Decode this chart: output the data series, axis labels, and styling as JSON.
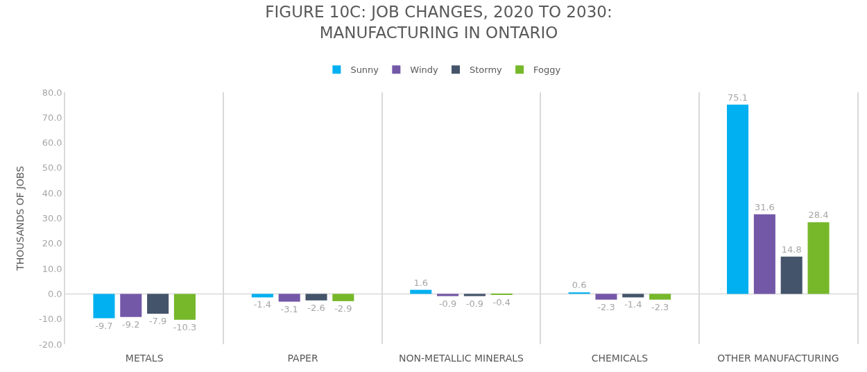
{
  "chart_data": {
    "type": "bar",
    "title": "FIGURE 10C: JOB CHANGES, 2020 TO 2030:\nMANUFACTURING IN ONTARIO",
    "ylabel": "THOUSANDS OF JOBS",
    "categories": [
      "METALS",
      "PAPER",
      "NON-METALLIC MINERALS",
      "CHEMICALS",
      "OTHER MANUFACTURING"
    ],
    "series": [
      {
        "name": "Sunny",
        "color": "#00b0f0",
        "values": [
          -9.7,
          -1.4,
          1.6,
          0.6,
          75.1
        ]
      },
      {
        "name": "Windy",
        "color": "#7458a8",
        "values": [
          -9.2,
          -3.1,
          -0.9,
          -2.3,
          31.6
        ]
      },
      {
        "name": "Stormy",
        "color": "#44546a",
        "values": [
          -7.9,
          -2.6,
          -0.9,
          -1.4,
          14.8
        ]
      },
      {
        "name": "Foggy",
        "color": "#76b82a",
        "values": [
          -10.3,
          -2.9,
          -0.4,
          -2.3,
          28.4
        ]
      }
    ],
    "ylim": [
      -20,
      80
    ],
    "yticks": [
      {
        "value": -20,
        "label": "-20.0"
      },
      {
        "value": -10,
        "label": "-10.0"
      },
      {
        "value": 0,
        "label": "0.0"
      },
      {
        "value": 10,
        "label": "10.0"
      },
      {
        "value": 20,
        "label": "20.0"
      },
      {
        "value": 30,
        "label": "30.0"
      },
      {
        "value": 40,
        "label": "40.0"
      },
      {
        "value": 50,
        "label": "50.0"
      },
      {
        "value": 60,
        "label": "60.0"
      },
      {
        "value": 70,
        "label": "70.0"
      },
      {
        "value": 80,
        "label": "80.0"
      }
    ],
    "ref_lines": [
      {
        "axis": "y",
        "value": 0,
        "color": "#d9d9d9"
      }
    ],
    "data_labels": true,
    "grid": "x",
    "legend": "top"
  }
}
